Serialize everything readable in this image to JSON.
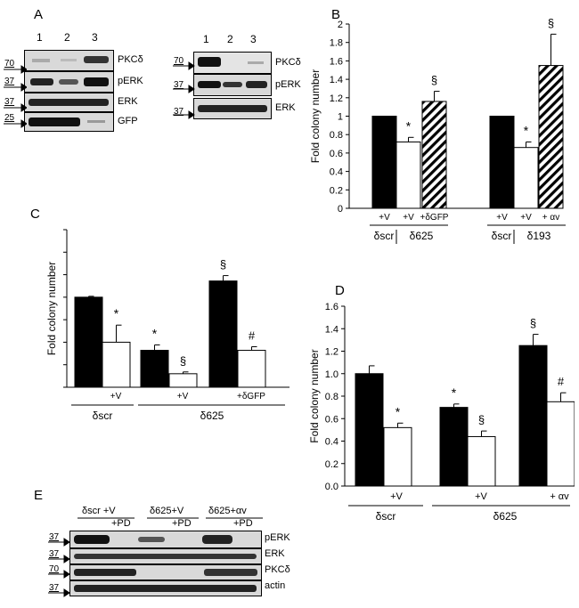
{
  "panels": {
    "A": {
      "label": "A",
      "left_blot": {
        "lanes": [
          "1",
          "2",
          "3"
        ],
        "rows": [
          {
            "name": "PKCδ",
            "marker": "70"
          },
          {
            "name": "pERK",
            "marker": "37"
          },
          {
            "name": "ERK",
            "marker": "37"
          },
          {
            "name": "GFP",
            "marker": "25"
          }
        ]
      },
      "right_blot": {
        "lanes": [
          "1",
          "2",
          "3"
        ],
        "rows": [
          {
            "name": "PKCδ",
            "marker": "70"
          },
          {
            "name": "pERK",
            "marker": "37"
          },
          {
            "name": "ERK",
            "marker": "37"
          }
        ]
      }
    },
    "B": {
      "label": "B"
    },
    "C": {
      "label": "C"
    },
    "D": {
      "label": "D"
    },
    "E": {
      "label": "E",
      "group_headers": [
        "δscr +V",
        "δ625+V",
        "δ625+αv"
      ],
      "pd_labels": [
        "+PD",
        "+PD",
        "+PD"
      ],
      "rows": [
        {
          "name": "pERK",
          "marker": "37"
        },
        {
          "name": "ERK",
          "marker": "37"
        },
        {
          "name": "PKCδ",
          "marker": "70"
        },
        {
          "name": "actin",
          "marker": "37"
        }
      ]
    }
  },
  "colors": {
    "black_bar": "#000000",
    "white_bar": "#ffffff",
    "axis": "#000000"
  },
  "chart_data": [
    {
      "panel": "B",
      "type": "bar",
      "ylabel": "Fold colony number",
      "ylim": [
        0,
        2
      ],
      "yticks": [
        "0",
        "0.2",
        "0.4",
        "0.6",
        "0.8",
        "1",
        "1.2",
        "1.4",
        "1.6",
        "1.8",
        "2"
      ],
      "bars": [
        {
          "label": "+V",
          "value": 1.0,
          "err": 0,
          "fill": "black",
          "mark": ""
        },
        {
          "label": "+V",
          "value": 0.72,
          "err": 0.05,
          "fill": "white",
          "mark": "*"
        },
        {
          "label": "+δGFP",
          "value": 1.16,
          "err": 0.11,
          "fill": "hatch",
          "mark": "§"
        },
        {
          "label": "+V",
          "value": 1.0,
          "err": 0,
          "fill": "black",
          "mark": ""
        },
        {
          "label": "+V",
          "value": 0.66,
          "err": 0.06,
          "fill": "white",
          "mark": "*"
        },
        {
          "label": "+ αv",
          "value": 1.55,
          "err": 0.34,
          "fill": "hatch",
          "mark": "§"
        }
      ],
      "groups": [
        "δscr",
        "δ625",
        "δscr",
        "δ193"
      ]
    },
    {
      "panel": "C",
      "type": "bar",
      "ylabel": "Fold colony number",
      "ylim": [
        0,
        1.75
      ],
      "bars": [
        {
          "value": 1.0,
          "err": 0.01,
          "fill": "black",
          "mark": ""
        },
        {
          "value": 0.5,
          "err": 0.19,
          "fill": "white",
          "mark": "*"
        },
        {
          "value": 0.41,
          "err": 0.06,
          "fill": "black",
          "mark": "*"
        },
        {
          "value": 0.15,
          "err": 0.02,
          "fill": "white",
          "mark": "§"
        },
        {
          "value": 1.18,
          "err": 0.06,
          "fill": "black",
          "mark": "§"
        },
        {
          "value": 0.41,
          "err": 0.04,
          "fill": "white",
          "mark": "#"
        }
      ],
      "cond_labels": [
        "+V",
        "+V",
        "+δGFP"
      ],
      "groups": [
        "δscr",
        "δ625"
      ]
    },
    {
      "panel": "D",
      "type": "bar",
      "ylabel": "Fold colony number",
      "ylim": [
        0,
        1.6
      ],
      "yticks": [
        "0.0",
        "0.2",
        "0.4",
        "0.6",
        "0.8",
        "1.0",
        "1.2",
        "1.4",
        "1.6"
      ],
      "bars": [
        {
          "value": 1.0,
          "err": 0.07,
          "fill": "black",
          "mark": ""
        },
        {
          "value": 0.52,
          "err": 0.04,
          "fill": "white",
          "mark": "*"
        },
        {
          "value": 0.7,
          "err": 0.03,
          "fill": "black",
          "mark": "*"
        },
        {
          "value": 0.44,
          "err": 0.05,
          "fill": "white",
          "mark": "§"
        },
        {
          "value": 1.25,
          "err": 0.1,
          "fill": "black",
          "mark": "§"
        },
        {
          "value": 0.75,
          "err": 0.08,
          "fill": "white",
          "mark": "#"
        }
      ],
      "cond_labels": [
        "+V",
        "+V",
        "+ αv"
      ],
      "groups": [
        "δscr",
        "δ625"
      ]
    }
  ]
}
